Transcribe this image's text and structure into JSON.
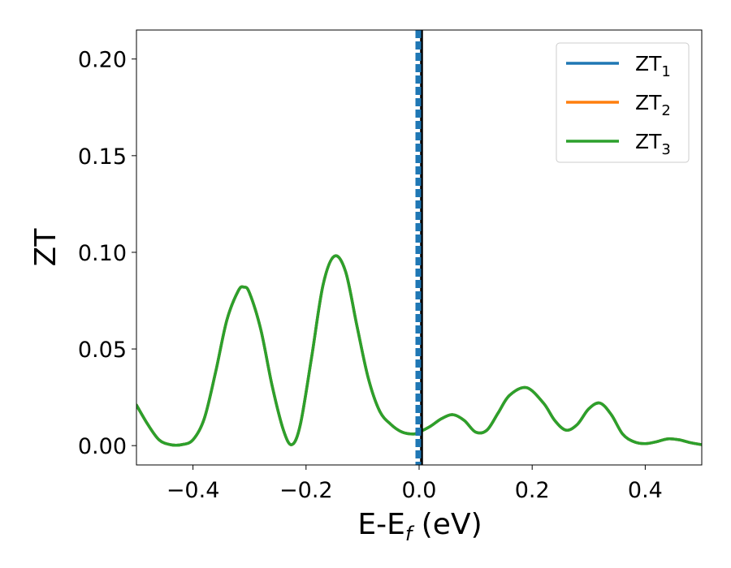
{
  "chart_data": {
    "type": "line",
    "xlabel": "E-E",
    "xlabel_sub": "f",
    "xlabel_unit": " (eV)",
    "ylabel": "ZT",
    "xlim": [
      -0.5,
      0.5
    ],
    "ylim": [
      -0.01,
      0.215
    ],
    "xticks": [
      -0.4,
      -0.2,
      0.0,
      0.2,
      0.4
    ],
    "xtick_labels": [
      "−0.4",
      "−0.2",
      "0.0",
      "0.2",
      "0.4"
    ],
    "yticks": [
      0.0,
      0.05,
      0.1,
      0.15,
      0.2
    ],
    "ytick_labels": [
      "0.00",
      "0.05",
      "0.10",
      "0.15",
      "0.20"
    ],
    "grid": false,
    "legend_position": "top-right",
    "vertical_line_x": 0.0,
    "x": [
      -0.5,
      -0.48,
      -0.46,
      -0.44,
      -0.42,
      -0.4,
      -0.38,
      -0.36,
      -0.34,
      -0.32,
      -0.31,
      -0.3,
      -0.28,
      -0.26,
      -0.24,
      -0.225,
      -0.21,
      -0.19,
      -0.17,
      -0.15,
      -0.13,
      -0.11,
      -0.09,
      -0.07,
      -0.05,
      -0.03,
      -0.01,
      0.0,
      0.02,
      0.04,
      0.06,
      0.08,
      0.1,
      0.12,
      0.14,
      0.16,
      0.19,
      0.22,
      0.24,
      0.26,
      0.28,
      0.3,
      0.32,
      0.34,
      0.36,
      0.38,
      0.4,
      0.42,
      0.44,
      0.46,
      0.48,
      0.5
    ],
    "series": [
      {
        "name": "ZT",
        "sub": "1",
        "color": "#1f77b4",
        "values": [
          0.021,
          0.011,
          0.003,
          0.0005,
          0.0005,
          0.003,
          0.014,
          0.038,
          0.065,
          0.08,
          0.082,
          0.079,
          0.06,
          0.031,
          0.008,
          0.0005,
          0.011,
          0.046,
          0.083,
          0.098,
          0.09,
          0.062,
          0.035,
          0.018,
          0.011,
          0.007,
          0.006,
          0.007,
          0.01,
          0.014,
          0.016,
          0.013,
          0.007,
          0.008,
          0.017,
          0.026,
          0.03,
          0.022,
          0.013,
          0.008,
          0.011,
          0.019,
          0.022,
          0.016,
          0.006,
          0.002,
          0.001,
          0.002,
          0.0035,
          0.003,
          0.0015,
          0.0005
        ]
      },
      {
        "name": "ZT",
        "sub": "2",
        "color": "#ff7f0e",
        "values": [
          0.021,
          0.011,
          0.003,
          0.0005,
          0.0005,
          0.003,
          0.014,
          0.038,
          0.065,
          0.08,
          0.082,
          0.079,
          0.06,
          0.031,
          0.008,
          0.0005,
          0.011,
          0.046,
          0.083,
          0.098,
          0.09,
          0.062,
          0.035,
          0.018,
          0.011,
          0.007,
          0.006,
          0.007,
          0.01,
          0.014,
          0.016,
          0.013,
          0.007,
          0.008,
          0.017,
          0.026,
          0.03,
          0.022,
          0.013,
          0.008,
          0.011,
          0.019,
          0.022,
          0.016,
          0.006,
          0.002,
          0.001,
          0.002,
          0.0035,
          0.003,
          0.0015,
          0.0005
        ]
      },
      {
        "name": "ZT",
        "sub": "3",
        "color": "#2ca02c",
        "values": [
          0.021,
          0.011,
          0.003,
          0.0005,
          0.0005,
          0.003,
          0.014,
          0.038,
          0.065,
          0.08,
          0.082,
          0.079,
          0.06,
          0.031,
          0.008,
          0.0005,
          0.011,
          0.046,
          0.083,
          0.098,
          0.09,
          0.062,
          0.035,
          0.018,
          0.011,
          0.007,
          0.006,
          0.007,
          0.01,
          0.014,
          0.016,
          0.013,
          0.007,
          0.008,
          0.017,
          0.026,
          0.03,
          0.022,
          0.013,
          0.008,
          0.011,
          0.019,
          0.022,
          0.016,
          0.006,
          0.002,
          0.001,
          0.002,
          0.0035,
          0.003,
          0.0015,
          0.0005
        ]
      }
    ]
  }
}
